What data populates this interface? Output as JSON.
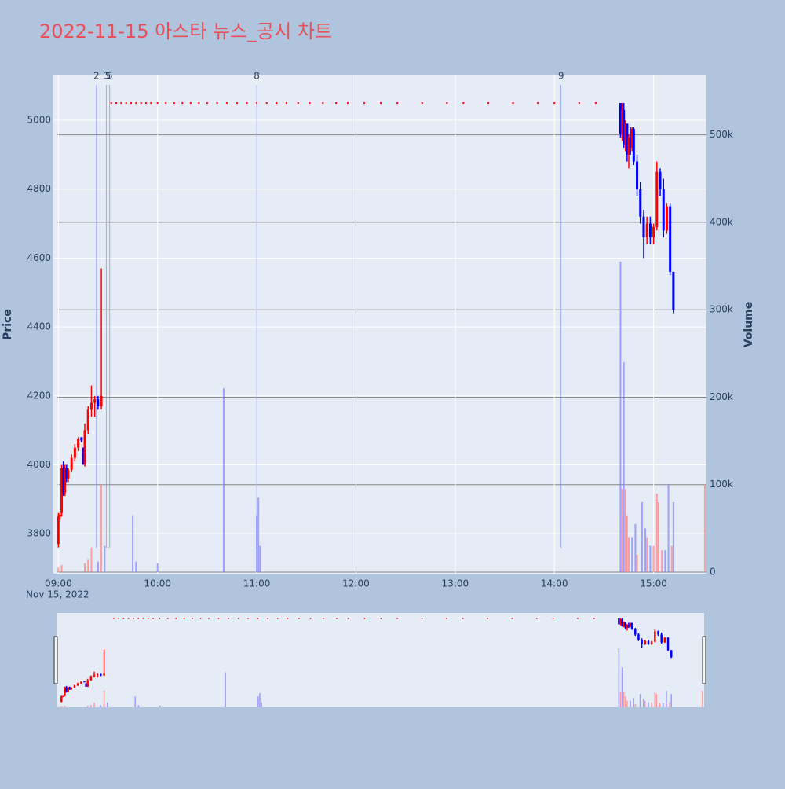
{
  "chart_data": {
    "type": "candlestick",
    "title": "2022-11-15 아스타 뉴스_공시 차트",
    "ylabel": "Price",
    "y2label": "Volume",
    "xdate": "Nov 15, 2022",
    "xlim": [
      "08:57",
      "15:32"
    ],
    "xticks": [
      "09:00",
      "10:00",
      "11:00",
      "12:00",
      "13:00",
      "14:00",
      "15:00"
    ],
    "ylim": [
      3684,
      5130
    ],
    "yticks": [
      3800,
      4000,
      4200,
      4400,
      4600,
      4800,
      5000
    ],
    "y2lim": [
      0,
      568000
    ],
    "y2ticks": [
      0,
      {
        "value": 100000,
        "label": "100k"
      },
      {
        "value": 200000,
        "label": "200k"
      },
      {
        "value": 300000,
        "label": "300k"
      },
      {
        "value": 400000,
        "label": "400k"
      },
      {
        "value": 500000,
        "label": "500k"
      }
    ],
    "increasing_color": "#ff0000",
    "decreasing_color": "#0000ff",
    "grid": true,
    "candles": [
      {
        "x": "09:00",
        "open": 3770,
        "high": 3860,
        "low": 3760,
        "close": 3850
      },
      {
        "x": "09:01",
        "open": 3850,
        "high": 3860,
        "low": 3840,
        "close": 3855
      },
      {
        "x": "09:02",
        "open": 3860,
        "high": 4000,
        "low": 3850,
        "close": 3990
      },
      {
        "x": "09:03",
        "open": 3990,
        "high": 4010,
        "low": 3910,
        "close": 3920
      },
      {
        "x": "09:04",
        "open": 3920,
        "high": 4000,
        "low": 3910,
        "close": 3990
      },
      {
        "x": "09:05",
        "open": 3990,
        "high": 4000,
        "low": 3950,
        "close": 3960
      },
      {
        "x": "09:06",
        "open": 3960,
        "high": 3990,
        "low": 3950,
        "close": 3985
      },
      {
        "x": "09:08",
        "open": 3985,
        "high": 4030,
        "low": 3980,
        "close": 4020
      },
      {
        "x": "09:10",
        "open": 4020,
        "high": 4060,
        "low": 4010,
        "close": 4050
      },
      {
        "x": "09:12",
        "open": 4050,
        "high": 4080,
        "low": 4040,
        "close": 4075
      },
      {
        "x": "09:14",
        "open": 4080,
        "high": 4080,
        "low": 4065,
        "close": 4070
      },
      {
        "x": "09:15",
        "open": 4050,
        "high": 4050,
        "low": 4000,
        "close": 4000
      },
      {
        "x": "09:16",
        "open": 4000,
        "high": 4120,
        "low": 3995,
        "close": 4100
      },
      {
        "x": "09:18",
        "open": 4100,
        "high": 4170,
        "low": 4090,
        "close": 4160
      },
      {
        "x": "09:20",
        "open": 4160,
        "high": 4230,
        "low": 4140,
        "close": 4180
      },
      {
        "x": "09:22",
        "open": 4180,
        "high": 4200,
        "low": 4140,
        "close": 4190
      },
      {
        "x": "09:24",
        "open": 4190,
        "high": 4200,
        "low": 4160,
        "close": 4170
      },
      {
        "x": "09:26",
        "open": 4170,
        "high": 4570,
        "low": 4160,
        "close": 4200
      },
      {
        "x": "14:40",
        "open": 5050,
        "high": 5050,
        "low": 4950,
        "close": 4960
      },
      {
        "x": "14:41",
        "open": 4960,
        "high": 5050,
        "low": 4940,
        "close": 5030
      },
      {
        "x": "14:42",
        "open": 5030,
        "high": 5050,
        "low": 4920,
        "close": 4930
      },
      {
        "x": "14:43",
        "open": 4930,
        "high": 5000,
        "low": 4910,
        "close": 4990
      },
      {
        "x": "14:44",
        "open": 4990,
        "high": 4990,
        "low": 4880,
        "close": 4900
      },
      {
        "x": "14:45",
        "open": 4900,
        "high": 4960,
        "low": 4860,
        "close": 4950
      },
      {
        "x": "14:46",
        "open": 4950,
        "high": 4980,
        "low": 4900,
        "close": 4920
      },
      {
        "x": "14:47",
        "open": 4920,
        "high": 4980,
        "low": 4910,
        "close": 4975
      },
      {
        "x": "14:48",
        "open": 4975,
        "high": 4980,
        "low": 4870,
        "close": 4880
      },
      {
        "x": "14:50",
        "open": 4880,
        "high": 4900,
        "low": 4780,
        "close": 4800
      },
      {
        "x": "14:52",
        "open": 4800,
        "high": 4820,
        "low": 4700,
        "close": 4720
      },
      {
        "x": "14:54",
        "open": 4720,
        "high": 4740,
        "low": 4600,
        "close": 4660
      },
      {
        "x": "14:56",
        "open": 4660,
        "high": 4720,
        "low": 4640,
        "close": 4700
      },
      {
        "x": "14:58",
        "open": 4700,
        "high": 4720,
        "low": 4640,
        "close": 4660
      },
      {
        "x": "15:00",
        "open": 4660,
        "high": 4700,
        "low": 4640,
        "close": 4690
      },
      {
        "x": "15:02",
        "open": 4690,
        "high": 4880,
        "low": 4680,
        "close": 4850
      },
      {
        "x": "15:04",
        "open": 4850,
        "high": 4860,
        "low": 4780,
        "close": 4800
      },
      {
        "x": "15:06",
        "open": 4800,
        "high": 4830,
        "low": 4660,
        "close": 4680
      },
      {
        "x": "15:08",
        "open": 4680,
        "high": 4760,
        "low": 4670,
        "close": 4750
      },
      {
        "x": "15:10",
        "open": 4750,
        "high": 4760,
        "low": 4550,
        "close": 4560
      },
      {
        "x": "15:12",
        "open": 4560,
        "high": 4560,
        "low": 4440,
        "close": 4450
      }
    ],
    "volume": [
      {
        "x": "09:00",
        "value": 5000,
        "color": "#ff8080"
      },
      {
        "x": "09:02",
        "value": 8000,
        "color": "#ff8080"
      },
      {
        "x": "09:16",
        "value": 10000,
        "color": "#ff8080"
      },
      {
        "x": "09:18",
        "value": 15000,
        "color": "#ff8080"
      },
      {
        "x": "09:20",
        "value": 28000,
        "color": "#ff8080"
      },
      {
        "x": "09:24",
        "value": 12000,
        "color": "#8080ff"
      },
      {
        "x": "09:26",
        "value": 100000,
        "color": "#ff8080"
      },
      {
        "x": "09:28",
        "value": 30000,
        "color": "#8080ff"
      },
      {
        "x": "09:45",
        "value": 65000,
        "color": "#8080ff"
      },
      {
        "x": "09:47",
        "value": 12000,
        "color": "#8080ff"
      },
      {
        "x": "10:00",
        "value": 10000,
        "color": "#8080ff"
      },
      {
        "x": "10:40",
        "value": 210000,
        "color": "#8080ff"
      },
      {
        "x": "11:00",
        "value": 65000,
        "color": "#8080ff"
      },
      {
        "x": "11:01",
        "value": 85000,
        "color": "#8080ff"
      },
      {
        "x": "11:02",
        "value": 30000,
        "color": "#8080ff"
      },
      {
        "x": "14:40",
        "value": 355000,
        "color": "#8080ff"
      },
      {
        "x": "14:41",
        "value": 95000,
        "color": "#ff8080"
      },
      {
        "x": "14:42",
        "value": 240000,
        "color": "#8080ff"
      },
      {
        "x": "14:43",
        "value": 95000,
        "color": "#ff8080"
      },
      {
        "x": "14:44",
        "value": 65000,
        "color": "#ff8080"
      },
      {
        "x": "14:45",
        "value": 40000,
        "color": "#ff8080"
      },
      {
        "x": "14:47",
        "value": 40000,
        "color": "#8080ff"
      },
      {
        "x": "14:49",
        "value": 55000,
        "color": "#8080ff"
      },
      {
        "x": "14:50",
        "value": 20000,
        "color": "#ff8080"
      },
      {
        "x": "14:53",
        "value": 80000,
        "color": "#8080ff"
      },
      {
        "x": "14:55",
        "value": 50000,
        "color": "#8080ff"
      },
      {
        "x": "14:56",
        "value": 40000,
        "color": "#ff8080"
      },
      {
        "x": "14:58",
        "value": 30000,
        "color": "#8080ff"
      },
      {
        "x": "15:00",
        "value": 30000,
        "color": "#ff8080"
      },
      {
        "x": "15:02",
        "value": 90000,
        "color": "#ff8080"
      },
      {
        "x": "15:03",
        "value": 80000,
        "color": "#ff8080"
      },
      {
        "x": "15:05",
        "value": 25000,
        "color": "#ff8080"
      },
      {
        "x": "15:07",
        "value": 25000,
        "color": "#8080ff"
      },
      {
        "x": "15:09",
        "value": 100000,
        "color": "#8080ff"
      },
      {
        "x": "15:11",
        "value": 30000,
        "color": "#ff8080"
      },
      {
        "x": "15:12",
        "value": 80000,
        "color": "#8080ff"
      },
      {
        "x": "15:31",
        "value": 100000,
        "color": "#ff8080"
      }
    ],
    "news": [
      {
        "x": "09:23",
        "label": "2"
      },
      {
        "x": "09:29",
        "label": "3"
      },
      {
        "x": "09:30",
        "label": "5"
      },
      {
        "x": "09:31",
        "label": "6"
      },
      {
        "x": "11:00",
        "label": "8"
      },
      {
        "x": "14:04",
        "label": "9"
      }
    ],
    "disclosure_level": 5050,
    "disclosures": [
      "09:32",
      "09:35",
      "09:38",
      "09:41",
      "09:44",
      "09:47",
      "09:50",
      "09:53",
      "09:56",
      "10:00",
      "10:05",
      "10:10",
      "10:15",
      "10:20",
      "10:25",
      "10:30",
      "10:36",
      "10:42",
      "10:48",
      "10:54",
      "11:00",
      "11:06",
      "11:12",
      "11:18",
      "11:25",
      "11:32",
      "11:40",
      "11:48",
      "11:55",
      "12:05",
      "12:15",
      "12:25",
      "12:40",
      "12:55",
      "13:05",
      "13:20",
      "13:35",
      "13:50",
      "14:00",
      "14:15",
      "14:25"
    ]
  }
}
